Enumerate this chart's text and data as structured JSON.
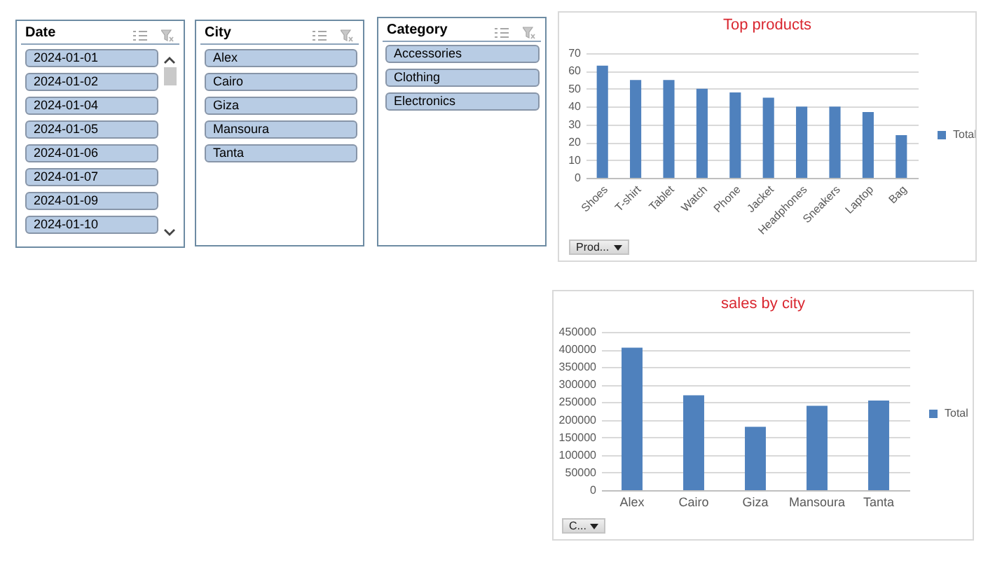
{
  "chart_data": [
    {
      "type": "other",
      "title": "Date",
      "annotations": [
        "2024-01-01",
        "2024-01-02",
        "2024-01-04",
        "2024-01-05",
        "2024-01-06",
        "2024-01-07",
        "2024-01-09",
        "2024-01-10"
      ]
    },
    {
      "type": "other",
      "title": "City",
      "annotations": [
        "Alex",
        "Cairo",
        "Giza",
        "Mansoura",
        "Tanta"
      ]
    },
    {
      "type": "other",
      "title": "Category",
      "annotations": [
        "Accessories",
        "Clothing",
        "Electronics"
      ]
    },
    {
      "type": "bar",
      "title": "Top products",
      "categories": [
        "Shoes",
        "T-shirt",
        "Tablet",
        "Watch",
        "Phone",
        "Jacket",
        "Headphones",
        "Sneakers",
        "Laptop",
        "Bag"
      ],
      "series": [
        {
          "name": "Total",
          "color": "#4f81bd",
          "values": [
            63,
            55,
            55,
            50,
            48,
            45,
            40,
            40,
            37,
            24
          ]
        }
      ],
      "ylim": [
        0,
        70
      ],
      "yticks": [
        0,
        10,
        20,
        30,
        40,
        50,
        60,
        70
      ],
      "grid": "y",
      "legend": "right",
      "annotations": [
        "Prod..."
      ]
    },
    {
      "type": "bar",
      "title": "sales by city",
      "categories": [
        "Alex",
        "Cairo",
        "Giza",
        "Mansoura",
        "Tanta"
      ],
      "series": [
        {
          "name": "Total",
          "color": "#4f81bd",
          "values": [
            405000,
            270000,
            180000,
            240000,
            255000
          ]
        }
      ],
      "ylim": [
        0,
        450000
      ],
      "yticks": [
        0,
        50000,
        100000,
        150000,
        200000,
        250000,
        300000,
        350000,
        400000,
        450000
      ],
      "grid": "y",
      "legend": "right",
      "annotations": [
        "C..."
      ]
    }
  ]
}
